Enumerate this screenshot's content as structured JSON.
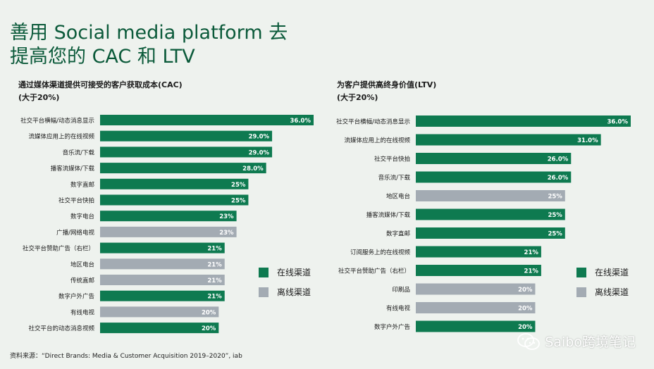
{
  "title": "善用 Social media platform 去提高您的 CAC 和 LTV",
  "source": "资料来源：“Direct Brands: Media & Customer Acquisition 2019–2020”, iab",
  "watermark": "Saibo跨境笔记",
  "colors": {
    "online": "#0e7a50",
    "offline": "#a3abb3",
    "title": "#0b5a3a"
  },
  "chart_data": [
    {
      "type": "bar",
      "orientation": "horizontal",
      "title": "通过媒体渠道提供可接受的客户获取成本(CAC)",
      "subtitle": "(大于20%)",
      "xlim": [
        0,
        36
      ],
      "legend": [
        {
          "label": "在线渠道",
          "kind": "online"
        },
        {
          "label": "离线渠道",
          "kind": "offline"
        }
      ],
      "bars": [
        {
          "label": "社交平台横幅/动态消息显示",
          "value": 36.0,
          "text": "36.0%",
          "kind": "online"
        },
        {
          "label": "流媒体应用上的在线视频",
          "value": 29.0,
          "text": "29.0%",
          "kind": "online"
        },
        {
          "label": "音乐流/下载",
          "value": 29.0,
          "text": "29.0%",
          "kind": "online"
        },
        {
          "label": "播客流媒体/下载",
          "value": 28.0,
          "text": "28.0%",
          "kind": "online"
        },
        {
          "label": "数字直邮",
          "value": 25,
          "text": "25%",
          "kind": "online"
        },
        {
          "label": "社交平台快拍",
          "value": 25,
          "text": "25%",
          "kind": "online"
        },
        {
          "label": "数字电台",
          "value": 23,
          "text": "23%",
          "kind": "online"
        },
        {
          "label": "广播/网络电视",
          "value": 23,
          "text": "23%",
          "kind": "offline"
        },
        {
          "label": "社交平台赞助广告（右栏）",
          "value": 21,
          "text": "21%",
          "kind": "online"
        },
        {
          "label": "地区电台",
          "value": 21,
          "text": "21%",
          "kind": "offline"
        },
        {
          "label": "传统直邮",
          "value": 21,
          "text": "21%",
          "kind": "offline"
        },
        {
          "label": "数字户外广告",
          "value": 21,
          "text": "21%",
          "kind": "online"
        },
        {
          "label": "有线电视",
          "value": 20,
          "text": "20%",
          "kind": "offline"
        },
        {
          "label": "社交平台的动态消息视频",
          "value": 20,
          "text": "20%",
          "kind": "online"
        }
      ]
    },
    {
      "type": "bar",
      "orientation": "horizontal",
      "title": "为客户提供高终身价值(LTV)",
      "subtitle": "(大于20%)",
      "xlim": [
        0,
        36
      ],
      "legend": [
        {
          "label": "在线渠道",
          "kind": "online"
        },
        {
          "label": "离线渠道",
          "kind": "offline"
        }
      ],
      "bars": [
        {
          "label": "社交平台横幅/动态消息显示",
          "value": 36.0,
          "text": "36.0%",
          "kind": "online"
        },
        {
          "label": "流媒体应用上的在线视频",
          "value": 31.0,
          "text": "31.0%",
          "kind": "online"
        },
        {
          "label": "社交平台快拍",
          "value": 26.0,
          "text": "26.0%",
          "kind": "online"
        },
        {
          "label": "音乐流/下载",
          "value": 26.0,
          "text": "26.0%",
          "kind": "online"
        },
        {
          "label": "地区电台",
          "value": 25,
          "text": "25%",
          "kind": "offline"
        },
        {
          "label": "播客流媒体/下载",
          "value": 25,
          "text": "25%",
          "kind": "online"
        },
        {
          "label": "数字直邮",
          "value": 25,
          "text": "25%",
          "kind": "online"
        },
        {
          "label": "订阅服务上的在线视频",
          "value": 21,
          "text": "21%",
          "kind": "online"
        },
        {
          "label": "社交平台赞助广告（右栏）",
          "value": 21,
          "text": "21%",
          "kind": "online"
        },
        {
          "label": "印刷品",
          "value": 20,
          "text": "20%",
          "kind": "offline"
        },
        {
          "label": "有线电视",
          "value": 20,
          "text": "20%",
          "kind": "offline"
        },
        {
          "label": "数字户外广告",
          "value": 20,
          "text": "20%",
          "kind": "online"
        }
      ]
    }
  ]
}
